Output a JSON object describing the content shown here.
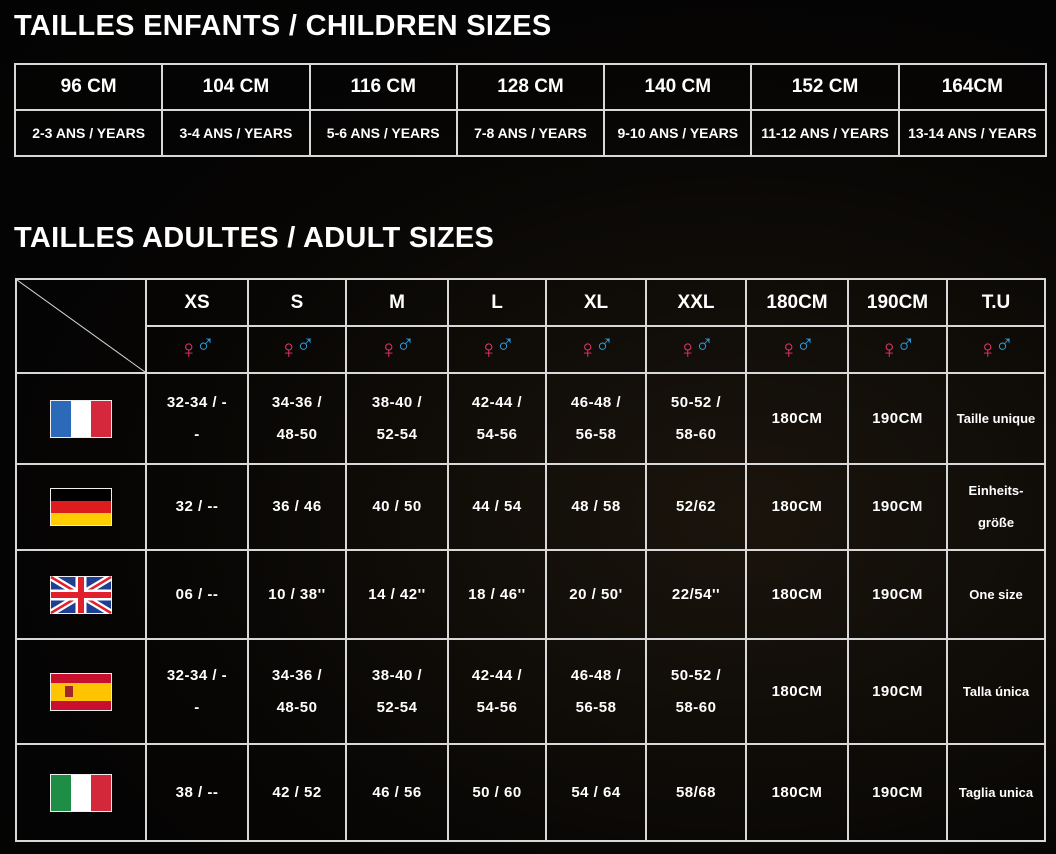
{
  "children": {
    "title": "TAILLES ENFANTS / CHILDREN SIZES",
    "sizes": [
      "96 CM",
      "104 CM",
      "116 CM",
      "128 CM",
      "140 CM",
      "152 CM",
      "164CM"
    ],
    "ages": [
      "2-3 ANS / YEARS",
      "3-4 ANS / YEARS",
      "5-6 ANS / YEARS",
      "7-8 ANS / YEARS",
      "9-10 ANS / YEARS",
      "11-12 ANS / YEARS",
      "13-14 ANS / YEARS"
    ]
  },
  "adult": {
    "title": "TAILLES ADULTES / ADULT SIZES",
    "headers": [
      "XS",
      "S",
      "M",
      "L",
      "XL",
      "XXL",
      "180CM",
      "190CM",
      "T.U"
    ],
    "gender_icons": [
      "female-symbol-icon",
      "male-symbol-icon"
    ],
    "colors": {
      "female": "#e8336a",
      "male": "#2b9de0"
    },
    "rows": [
      {
        "country": "france",
        "flag_icon": "flag-france-icon",
        "cells": [
          "32-34 / --",
          "34-36 / 48-50",
          "38-40 / 52-54",
          "42-44 / 54-56",
          "46-48 / 56-58",
          "50-52 / 58-60",
          "180CM",
          "190CM",
          "Taille unique"
        ]
      },
      {
        "country": "germany",
        "flag_icon": "flag-germany-icon",
        "cells": [
          "32 / --",
          "36 / 46",
          "40 / 50",
          "44 / 54",
          "48 / 58",
          "52/62",
          "180CM",
          "190CM",
          "Einheits- größe"
        ]
      },
      {
        "country": "uk",
        "flag_icon": "flag-uk-icon",
        "cells": [
          "06 / --",
          "10 / 38''",
          "14 / 42''",
          "18 / 46''",
          "20 / 50'",
          "22/54''",
          "180CM",
          "190CM",
          "One size"
        ]
      },
      {
        "country": "spain",
        "flag_icon": "flag-spain-icon",
        "cells": [
          "32-34 / --",
          "34-36 / 48-50",
          "38-40 / 52-54",
          "42-44 / 54-56",
          "46-48 / 56-58",
          "50-52 / 58-60",
          "180CM",
          "190CM",
          "Talla única"
        ]
      },
      {
        "country": "italy",
        "flag_icon": "flag-italy-icon",
        "cells": [
          "38 / --",
          "42 / 52",
          "46 / 56",
          "50 / 60",
          "54 / 64",
          "58/68",
          "180CM",
          "190CM",
          "Taglia unica"
        ]
      }
    ]
  }
}
